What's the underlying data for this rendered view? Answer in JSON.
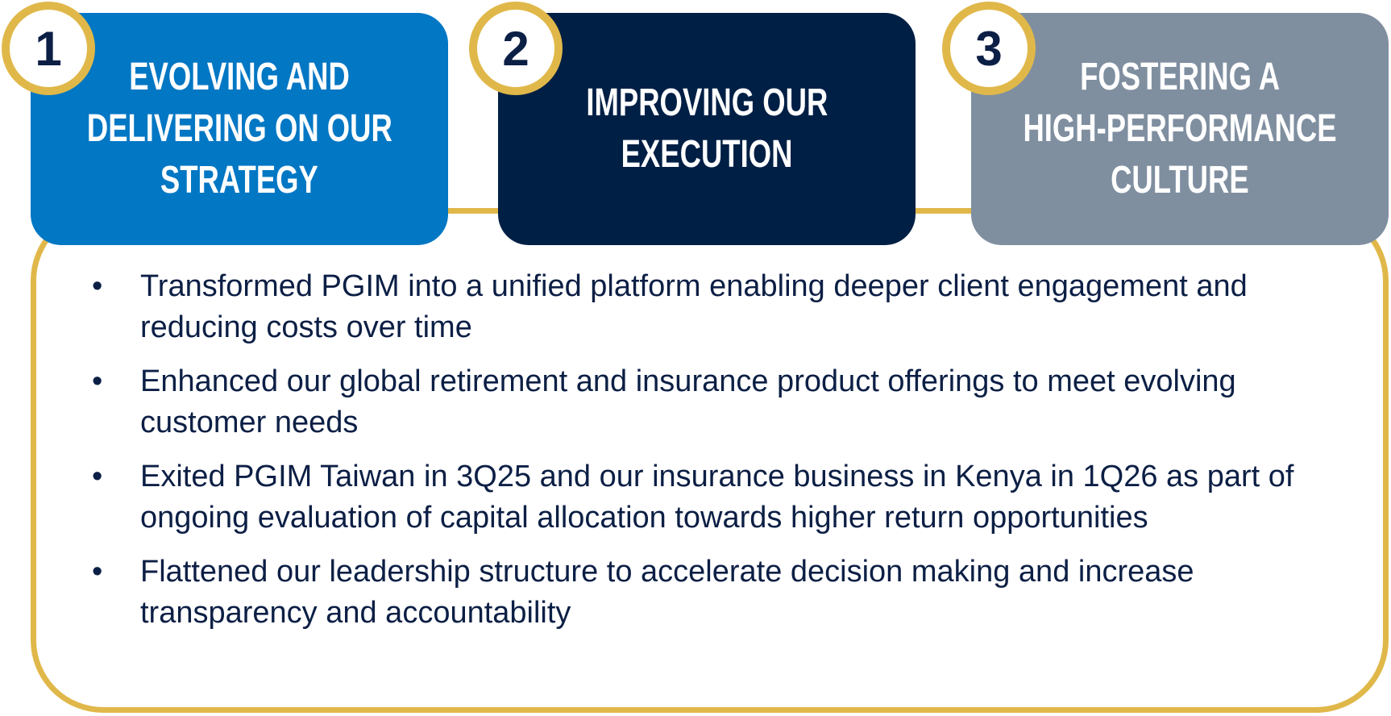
{
  "cards": [
    {
      "number": "1",
      "title_lines": [
        "EVOLVING AND",
        "DELIVERING ON OUR",
        "STRATEGY"
      ]
    },
    {
      "number": "2",
      "title_lines": [
        "IMPROVING OUR",
        "EXECUTION"
      ]
    },
    {
      "number": "3",
      "title_lines": [
        "FOSTERING A",
        "HIGH-PERFORMANCE",
        "CULTURE"
      ]
    }
  ],
  "bullets": [
    "Transformed PGIM into a unified platform enabling deeper client engagement and reducing costs over time",
    "Enhanced our global retirement and insurance product offerings to meet evolving customer needs",
    "Exited PGIM Taiwan in 3Q25 and our insurance business in Kenya in 1Q26 as part of ongoing evaluation of capital allocation towards higher return opportunities",
    "Flattened our leadership structure to accelerate decision making and increase transparency and accountability"
  ]
}
